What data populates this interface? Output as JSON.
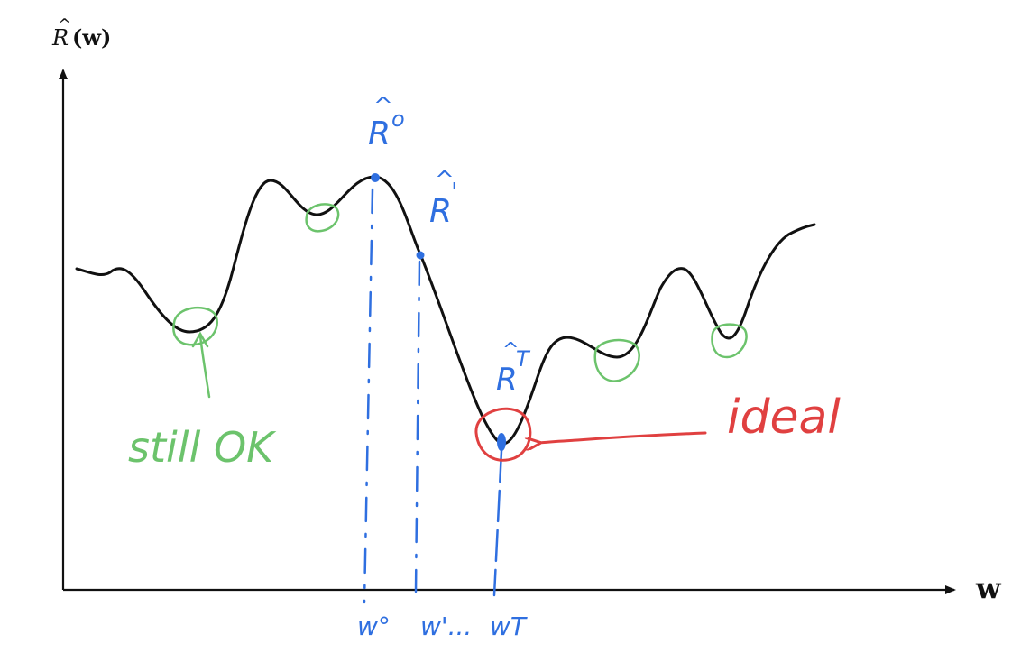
{
  "axes": {
    "y_label_R": "R",
    "y_label_hat": "^",
    "y_label_args": "(w)",
    "x_label": "w"
  },
  "annotations": {
    "r0_hat": "^",
    "r0_base": "R",
    "r0_sup": "o",
    "r1_hat": "^",
    "r1_base": "R",
    "r1_sup": "'",
    "rT_hat": "^",
    "rT_base": "R",
    "rT_sup": "T",
    "still_ok": "still OK",
    "ideal": "ideal"
  },
  "ticks": {
    "w0": "w°",
    "w1": "w'...",
    "wT": "wT"
  },
  "colors": {
    "curve": "#111111",
    "axes": "#111111",
    "iterates": "#2f6fe0",
    "local_minima": "#6cc36c",
    "ideal": "#e04040"
  }
}
